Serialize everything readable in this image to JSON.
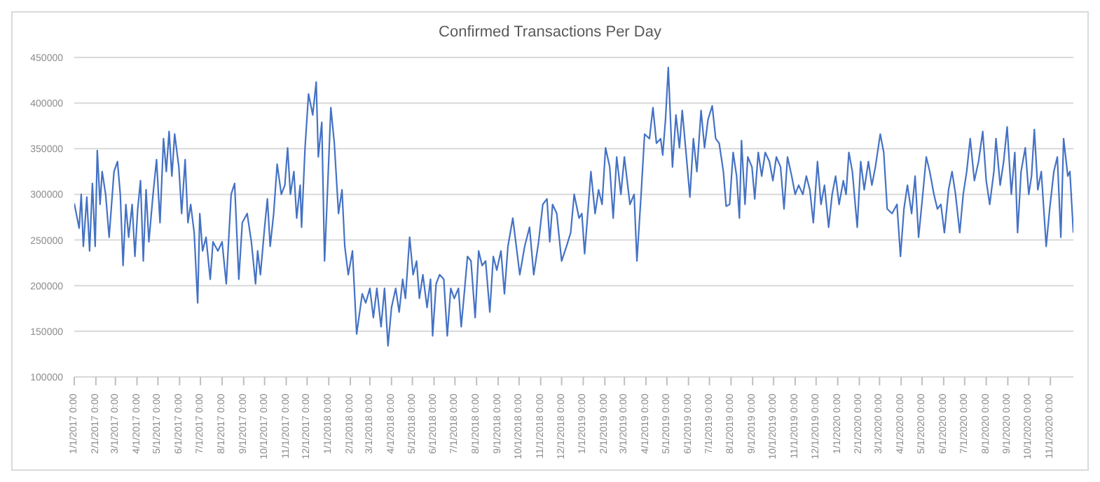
{
  "chart_data": {
    "type": "line",
    "title": "Confirmed Transactions Per Day",
    "x": [
      "2017-01-01",
      "2017-01-08",
      "2017-01-11",
      "2017-01-14",
      "2017-01-19",
      "2017-01-23",
      "2017-01-27",
      "2017-01-31",
      "2017-02-03",
      "2017-02-07",
      "2017-02-10",
      "2017-02-15",
      "2017-02-20",
      "2017-02-27",
      "2017-03-04",
      "2017-03-08",
      "2017-03-12",
      "2017-03-16",
      "2017-03-20",
      "2017-03-25",
      "2017-03-29",
      "2017-04-02",
      "2017-04-06",
      "2017-04-10",
      "2017-04-14",
      "2017-04-18",
      "2017-04-24",
      "2017-04-29",
      "2017-05-04",
      "2017-05-09",
      "2017-05-13",
      "2017-05-17",
      "2017-05-21",
      "2017-05-25",
      "2017-05-31",
      "2017-06-04",
      "2017-06-09",
      "2017-06-13",
      "2017-06-17",
      "2017-06-22",
      "2017-06-27",
      "2017-06-30",
      "2017-07-04",
      "2017-07-09",
      "2017-07-15",
      "2017-07-19",
      "2017-07-26",
      "2017-08-01",
      "2017-08-07",
      "2017-08-14",
      "2017-08-19",
      "2017-08-25",
      "2017-08-30",
      "2017-09-06",
      "2017-09-12",
      "2017-09-18",
      "2017-09-21",
      "2017-09-25",
      "2017-10-01",
      "2017-10-05",
      "2017-10-09",
      "2017-10-14",
      "2017-10-19",
      "2017-10-25",
      "2017-10-30",
      "2017-11-03",
      "2017-11-07",
      "2017-11-12",
      "2017-11-16",
      "2017-11-21",
      "2017-11-23",
      "2017-11-28",
      "2017-12-03",
      "2017-12-09",
      "2017-12-14",
      "2017-12-17",
      "2017-12-22",
      "2017-12-26",
      "2017-12-30",
      "2018-01-04",
      "2018-01-09",
      "2018-01-15",
      "2018-01-20",
      "2018-01-24",
      "2018-01-29",
      "2018-02-04",
      "2018-02-10",
      "2018-02-18",
      "2018-02-23",
      "2018-03-01",
      "2018-03-06",
      "2018-03-11",
      "2018-03-17",
      "2018-03-22",
      "2018-03-27",
      "2018-04-01",
      "2018-04-07",
      "2018-04-12",
      "2018-04-17",
      "2018-04-21",
      "2018-04-27",
      "2018-05-02",
      "2018-05-07",
      "2018-05-11",
      "2018-05-16",
      "2018-05-22",
      "2018-05-27",
      "2018-05-30",
      "2018-06-04",
      "2018-06-09",
      "2018-06-15",
      "2018-06-20",
      "2018-06-25",
      "2018-06-30",
      "2018-07-06",
      "2018-07-10",
      "2018-07-15",
      "2018-07-19",
      "2018-07-24",
      "2018-07-30",
      "2018-08-04",
      "2018-08-09",
      "2018-08-14",
      "2018-08-20",
      "2018-08-25",
      "2018-08-30",
      "2018-09-05",
      "2018-09-10",
      "2018-09-15",
      "2018-09-22",
      "2018-09-27",
      "2018-10-02",
      "2018-10-09",
      "2018-10-16",
      "2018-10-22",
      "2018-10-29",
      "2018-11-04",
      "2018-11-10",
      "2018-11-14",
      "2018-11-18",
      "2018-11-24",
      "2018-12-01",
      "2018-12-08",
      "2018-12-14",
      "2018-12-19",
      "2018-12-26",
      "2018-12-30",
      "2019-01-03",
      "2019-01-08",
      "2019-01-12",
      "2019-01-18",
      "2019-01-23",
      "2019-01-28",
      "2019-02-02",
      "2019-02-08",
      "2019-02-13",
      "2019-02-18",
      "2019-02-24",
      "2019-03-01",
      "2019-03-09",
      "2019-03-15",
      "2019-03-19",
      "2019-03-25",
      "2019-03-30",
      "2019-04-06",
      "2019-04-11",
      "2019-04-16",
      "2019-04-22",
      "2019-04-25",
      "2019-04-29",
      "2019-05-03",
      "2019-05-09",
      "2019-05-14",
      "2019-05-19",
      "2019-05-23",
      "2019-05-29",
      "2019-06-03",
      "2019-06-08",
      "2019-06-13",
      "2019-06-19",
      "2019-06-24",
      "2019-06-29",
      "2019-07-05",
      "2019-07-10",
      "2019-07-15",
      "2019-07-21",
      "2019-07-25",
      "2019-07-30",
      "2019-08-04",
      "2019-08-09",
      "2019-08-13",
      "2019-08-16",
      "2019-08-21",
      "2019-08-25",
      "2019-08-31",
      "2019-09-04",
      "2019-09-09",
      "2019-09-14",
      "2019-09-19",
      "2019-09-25",
      "2019-09-30",
      "2019-10-05",
      "2019-10-11",
      "2019-10-16",
      "2019-10-21",
      "2019-10-27",
      "2019-11-01",
      "2019-11-06",
      "2019-11-12",
      "2019-11-17",
      "2019-11-22",
      "2019-11-27",
      "2019-12-03",
      "2019-12-08",
      "2019-12-13",
      "2019-12-19",
      "2019-12-24",
      "2019-12-29",
      "2020-01-03",
      "2020-01-09",
      "2020-01-13",
      "2020-01-17",
      "2020-01-22",
      "2020-01-29",
      "2020-02-03",
      "2020-02-08",
      "2020-02-14",
      "2020-02-19",
      "2020-02-24",
      "2020-03-02",
      "2020-03-07",
      "2020-03-12",
      "2020-03-19",
      "2020-03-26",
      "2020-03-31",
      "2020-04-05",
      "2020-04-10",
      "2020-04-16",
      "2020-04-21",
      "2020-04-26",
      "2020-05-02",
      "2020-05-07",
      "2020-05-12",
      "2020-05-18",
      "2020-05-23",
      "2020-05-28",
      "2020-06-02",
      "2020-06-08",
      "2020-06-13",
      "2020-06-18",
      "2020-06-24",
      "2020-06-29",
      "2020-07-04",
      "2020-07-09",
      "2020-07-15",
      "2020-07-21",
      "2020-07-27",
      "2020-08-01",
      "2020-08-06",
      "2020-08-12",
      "2020-08-15",
      "2020-08-21",
      "2020-08-26",
      "2020-08-31",
      "2020-09-06",
      "2020-09-11",
      "2020-09-15",
      "2020-09-20",
      "2020-09-26",
      "2020-10-01",
      "2020-10-05",
      "2020-10-09",
      "2020-10-14",
      "2020-10-19",
      "2020-10-26",
      "2020-10-31",
      "2020-11-06",
      "2020-11-11",
      "2020-11-16",
      "2020-11-20",
      "2020-11-26",
      "2020-11-29",
      "2020-12-04"
    ],
    "series": [
      {
        "color": "#4472c4",
        "values": [
          290000,
          263000,
          300000,
          243000,
          297000,
          238000,
          312000,
          243000,
          348000,
          289000,
          325000,
          300000,
          253000,
          325000,
          336000,
          300000,
          222000,
          289000,
          253000,
          289000,
          232000,
          284000,
          315000,
          227000,
          305000,
          248000,
          300000,
          338000,
          269000,
          361000,
          325000,
          369000,
          320000,
          366000,
          330000,
          279000,
          338000,
          269000,
          289000,
          258000,
          181000,
          279000,
          238000,
          253000,
          207000,
          248000,
          238000,
          248000,
          202000,
          300000,
          312000,
          207000,
          269000,
          279000,
          248000,
          202000,
          238000,
          212000,
          264000,
          295000,
          243000,
          279000,
          333000,
          300000,
          310000,
          351000,
          300000,
          325000,
          274000,
          310000,
          264000,
          351000,
          410000,
          387000,
          423000,
          341000,
          379000,
          227000,
          300000,
          395000,
          356000,
          279000,
          305000,
          243000,
          212000,
          238000,
          147000,
          191000,
          181000,
          197000,
          165000,
          197000,
          155000,
          197000,
          134000,
          176000,
          197000,
          171000,
          207000,
          186000,
          253000,
          212000,
          227000,
          186000,
          212000,
          176000,
          207000,
          145000,
          202000,
          212000,
          207000,
          145000,
          197000,
          186000,
          197000,
          155000,
          197000,
          232000,
          227000,
          165000,
          238000,
          222000,
          227000,
          171000,
          232000,
          217000,
          238000,
          191000,
          243000,
          274000,
          243000,
          212000,
          243000,
          264000,
          212000,
          248000,
          289000,
          295000,
          248000,
          289000,
          279000,
          227000,
          243000,
          258000,
          300000,
          274000,
          279000,
          235000,
          284000,
          325000,
          279000,
          305000,
          289000,
          351000,
          330000,
          274000,
          341000,
          300000,
          341000,
          289000,
          300000,
          227000,
          300000,
          366000,
          361000,
          395000,
          356000,
          361000,
          343000,
          382000,
          439000,
          330000,
          387000,
          351000,
          392000,
          341000,
          297000,
          361000,
          325000,
          392000,
          351000,
          382000,
          397000,
          361000,
          356000,
          325000,
          287000,
          289000,
          346000,
          320000,
          274000,
          359000,
          289000,
          341000,
          330000,
          295000,
          346000,
          320000,
          346000,
          336000,
          315000,
          341000,
          330000,
          284000,
          341000,
          320000,
          300000,
          310000,
          300000,
          320000,
          305000,
          269000,
          336000,
          289000,
          310000,
          264000,
          300000,
          320000,
          289000,
          315000,
          300000,
          346000,
          325000,
          264000,
          336000,
          305000,
          336000,
          310000,
          330000,
          366000,
          346000,
          284000,
          279000,
          289000,
          232000,
          284000,
          310000,
          279000,
          320000,
          253000,
          300000,
          341000,
          325000,
          300000,
          284000,
          289000,
          258000,
          305000,
          325000,
          300000,
          258000,
          300000,
          325000,
          361000,
          315000,
          336000,
          369000,
          315000,
          289000,
          325000,
          361000,
          310000,
          336000,
          374000,
          300000,
          346000,
          258000,
          325000,
          351000,
          300000,
          320000,
          371000,
          305000,
          325000,
          243000,
          284000,
          325000,
          341000,
          253000,
          361000,
          320000,
          325000,
          258000
        ]
      }
    ],
    "xlim": [
      "2017-01-01",
      "2020-12-04"
    ],
    "xticks": [
      {
        "value": "2017-01-01",
        "label": "1/1/2017 0:00"
      },
      {
        "value": "2017-02-01",
        "label": "2/1/2017 0:00"
      },
      {
        "value": "2017-03-01",
        "label": "3/1/2017 0:00"
      },
      {
        "value": "2017-04-01",
        "label": "4/1/2017 0:00"
      },
      {
        "value": "2017-05-01",
        "label": "5/1/2017 0:00"
      },
      {
        "value": "2017-06-01",
        "label": "6/1/2017 0:00"
      },
      {
        "value": "2017-07-01",
        "label": "7/1/2017 0:00"
      },
      {
        "value": "2017-08-01",
        "label": "8/1/2017 0:00"
      },
      {
        "value": "2017-09-01",
        "label": "9/1/2017 0:00"
      },
      {
        "value": "2017-10-01",
        "label": "10/1/2017 0:00"
      },
      {
        "value": "2017-11-01",
        "label": "11/1/2017 0:00"
      },
      {
        "value": "2017-12-01",
        "label": "12/1/2017 0:00"
      },
      {
        "value": "2018-01-01",
        "label": "1/1/2018 0:00"
      },
      {
        "value": "2018-02-01",
        "label": "2/1/2018 0:00"
      },
      {
        "value": "2018-03-01",
        "label": "3/1/2018 0:00"
      },
      {
        "value": "2018-04-01",
        "label": "4/1/2018 0:00"
      },
      {
        "value": "2018-05-01",
        "label": "5/1/2018 0:00"
      },
      {
        "value": "2018-06-01",
        "label": "6/1/2018 0:00"
      },
      {
        "value": "2018-07-01",
        "label": "7/1/2018 0:00"
      },
      {
        "value": "2018-08-01",
        "label": "8/1/2018 0:00"
      },
      {
        "value": "2018-09-01",
        "label": "9/1/2018 0:00"
      },
      {
        "value": "2018-10-01",
        "label": "10/1/2018 0:00"
      },
      {
        "value": "2018-11-01",
        "label": "11/1/2018 0:00"
      },
      {
        "value": "2018-12-01",
        "label": "12/1/2018 0:00"
      },
      {
        "value": "2019-01-01",
        "label": "1/1/2019 0:00"
      },
      {
        "value": "2019-02-01",
        "label": "2/1/2019 0:00"
      },
      {
        "value": "2019-03-01",
        "label": "3/1/2019 0:00"
      },
      {
        "value": "2019-04-01",
        "label": "4/1/2019 0:00"
      },
      {
        "value": "2019-05-01",
        "label": "5/1/2019 0:00"
      },
      {
        "value": "2019-06-01",
        "label": "6/1/2019 0:00"
      },
      {
        "value": "2019-07-01",
        "label": "7/1/2019 0:00"
      },
      {
        "value": "2019-08-01",
        "label": "8/1/2019 0:00"
      },
      {
        "value": "2019-09-01",
        "label": "9/1/2019 0:00"
      },
      {
        "value": "2019-10-01",
        "label": "10/1/2019 0:00"
      },
      {
        "value": "2019-11-01",
        "label": "11/1/2019 0:00"
      },
      {
        "value": "2019-12-01",
        "label": "12/1/2019 0:00"
      },
      {
        "value": "2020-01-01",
        "label": "1/1/2020 0:00"
      },
      {
        "value": "2020-02-01",
        "label": "2/1/2020 0:00"
      },
      {
        "value": "2020-03-01",
        "label": "3/1/2020 0:00"
      },
      {
        "value": "2020-04-01",
        "label": "4/1/2020 0:00"
      },
      {
        "value": "2020-05-01",
        "label": "5/1/2020 0:00"
      },
      {
        "value": "2020-06-01",
        "label": "6/1/2020 0:00"
      },
      {
        "value": "2020-07-01",
        "label": "7/1/2020 0:00"
      },
      {
        "value": "2020-08-01",
        "label": "8/1/2020 0:00"
      },
      {
        "value": "2020-09-01",
        "label": "9/1/2020 0:00"
      },
      {
        "value": "2020-10-01",
        "label": "10/1/2020 0:00"
      },
      {
        "value": "2020-11-01",
        "label": "11/1/2020 0:00"
      }
    ],
    "ylim": [
      100000,
      450000
    ],
    "yticks": [
      100000,
      150000,
      200000,
      250000,
      300000,
      350000,
      400000,
      450000
    ],
    "grid": "y"
  }
}
